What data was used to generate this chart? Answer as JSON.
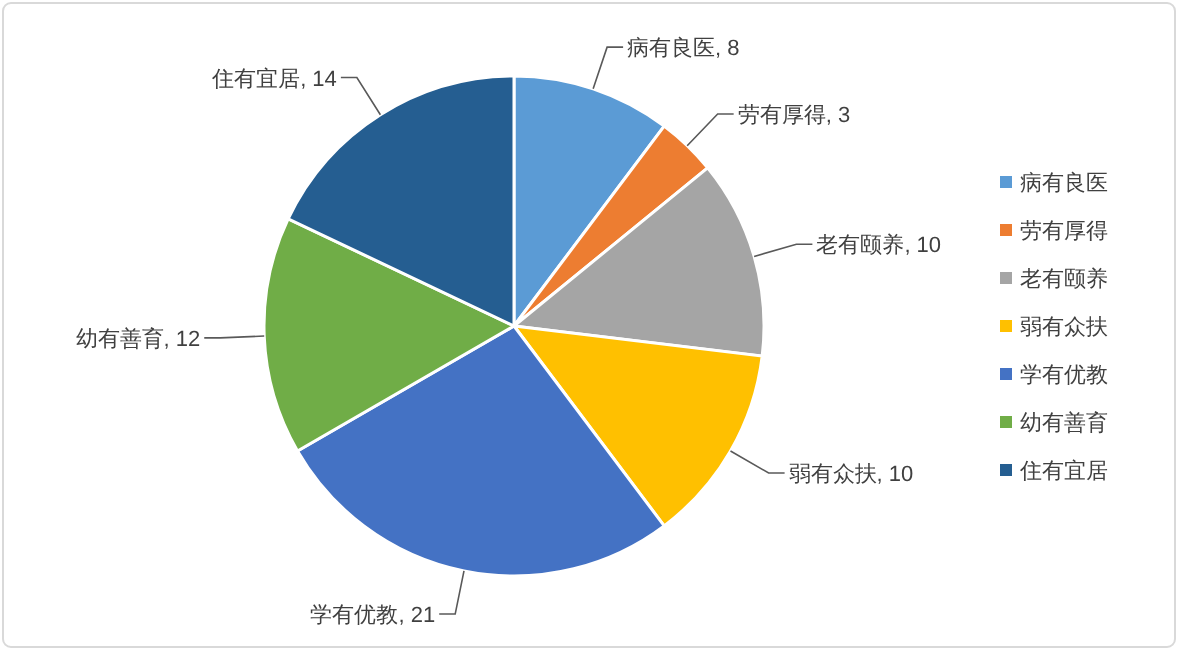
{
  "chart_data": {
    "type": "pie",
    "categories": [
      "病有良医",
      "劳有厚得",
      "老有颐养",
      "弱有众扶",
      "学有优教",
      "幼有善育",
      "住有宜居"
    ],
    "values": [
      8,
      3,
      10,
      10,
      21,
      12,
      14
    ],
    "colors": [
      "#5b9bd5",
      "#ed7d31",
      "#a5a5a5",
      "#ffc000",
      "#4472c4",
      "#70ad47",
      "#255e91"
    ],
    "value_labels": [
      ", 8",
      ", 3",
      ", 10",
      ", 10",
      ", 21",
      ", 12",
      ", 14"
    ],
    "legend": "right"
  }
}
